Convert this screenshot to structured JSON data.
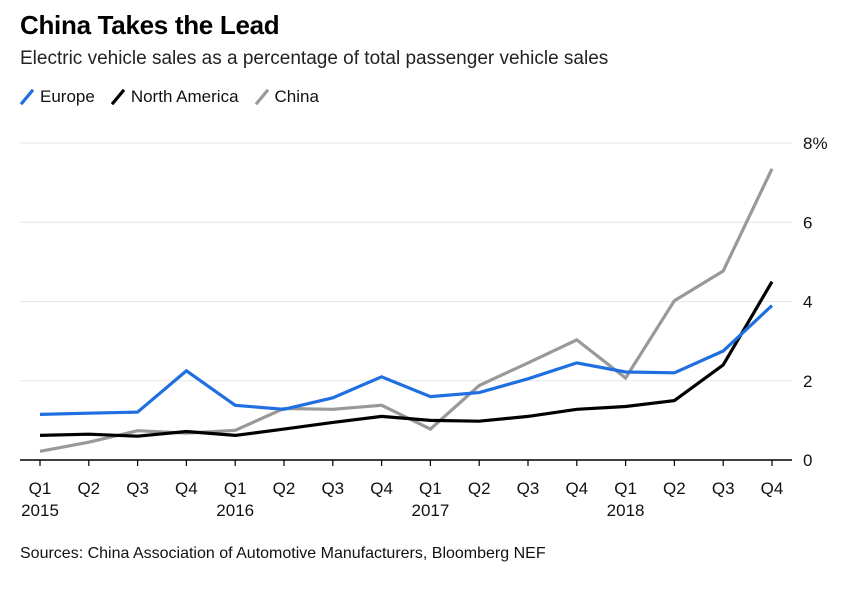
{
  "colors": {
    "europe": "#1f6fe0",
    "north_america": "#000000",
    "china": "#999999",
    "grid": "#e6e6e6",
    "axis": "#000000"
  },
  "chart_data": {
    "type": "line",
    "title": "China Takes the Lead",
    "subtitle": "Electric vehicle sales as a percentage of total passenger vehicle sales",
    "xlabel": "",
    "ylabel": "",
    "categories": [
      "Q1",
      "Q2",
      "Q3",
      "Q4",
      "Q1",
      "Q2",
      "Q3",
      "Q4",
      "Q1",
      "Q2",
      "Q3",
      "Q4",
      "Q1",
      "Q2",
      "Q3",
      "Q4"
    ],
    "year_labels": [
      "2015",
      "2016",
      "2017",
      "2018"
    ],
    "year_label_positions": [
      0,
      4,
      8,
      12
    ],
    "ylim": [
      0,
      8
    ],
    "y_ticks": [
      {
        "value": 0,
        "label": "0"
      },
      {
        "value": 2,
        "label": "2"
      },
      {
        "value": 4,
        "label": "4"
      },
      {
        "value": 6,
        "label": "6"
      },
      {
        "value": 8,
        "label": "8%"
      }
    ],
    "grid": true,
    "legend_position": "top-left",
    "series": [
      {
        "name": "Europe",
        "key": "europe",
        "values": [
          1.15,
          1.18,
          1.21,
          2.25,
          1.38,
          1.28,
          1.57,
          2.1,
          1.6,
          1.7,
          2.05,
          2.45,
          2.22,
          2.2,
          2.75,
          3.9
        ]
      },
      {
        "name": "North America",
        "key": "north_america",
        "values": [
          0.62,
          0.65,
          0.6,
          0.72,
          0.62,
          0.78,
          0.95,
          1.1,
          1.0,
          0.98,
          1.1,
          1.28,
          1.35,
          1.5,
          2.4,
          4.5
        ]
      },
      {
        "name": "China",
        "key": "china",
        "values": [
          0.22,
          0.45,
          0.74,
          0.68,
          0.75,
          1.3,
          1.28,
          1.38,
          0.78,
          1.88,
          2.45,
          3.03,
          2.07,
          4.02,
          4.77,
          7.35
        ]
      }
    ],
    "source": "Sources: China Association of Automotive Manufacturers, Bloomberg NEF"
  }
}
